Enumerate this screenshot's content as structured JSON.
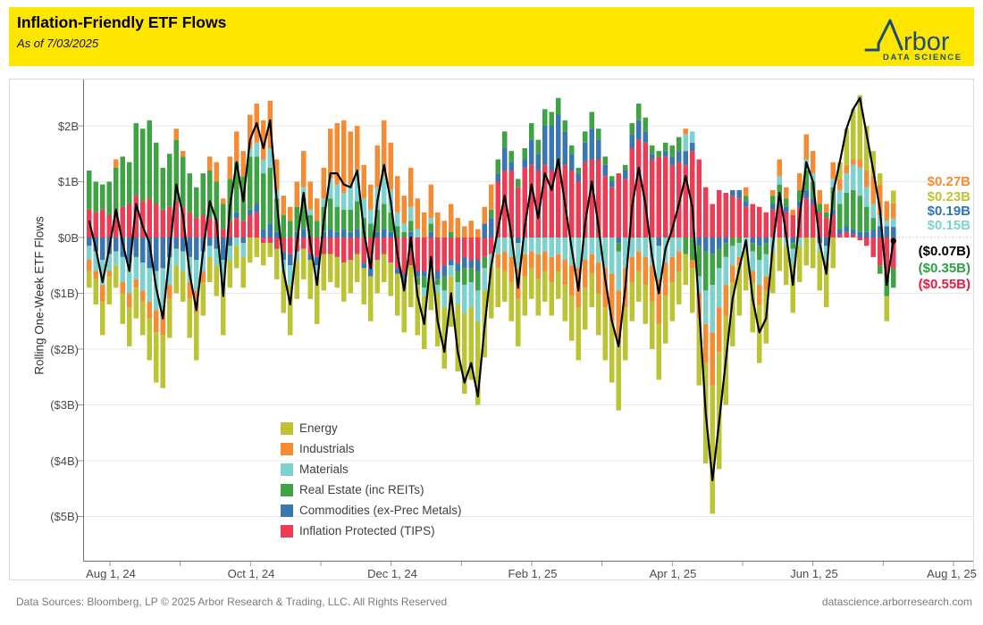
{
  "header": {
    "title": "Inflation-Friendly ETF Flows",
    "subtitle": "As of 7/03/2025",
    "logo_text": "rbor",
    "logo_tagline": "DATA SCIENCE"
  },
  "footer": {
    "left": "Data Sources: Bloomberg, LP © 2025 Arbor Research & Trading, LLC. All Rights Reserved",
    "right": "datascience.arborresearch.com"
  },
  "colors": {
    "header_bg": "#FFE600",
    "logo_navy": "#1D4E70",
    "line": "#000000",
    "grid": "#E8E8E8",
    "zero_line": "#A8A8A8",
    "axis": "#6F6F6F"
  },
  "legend": {
    "items": [
      {
        "label": "Energy",
        "color": "#BDC433"
      },
      {
        "label": "Industrials",
        "color": "#F58B33"
      },
      {
        "label": "Materials",
        "color": "#7CD2CE"
      },
      {
        "label": "Real Estate (inc REITs)",
        "color": "#3FA344"
      },
      {
        "label": "Commodities (ex-Prec Metals)",
        "color": "#3A76AF"
      },
      {
        "label": "Inflation Protected (TIPS)",
        "color": "#EB3D55"
      }
    ]
  },
  "chart_data": {
    "type": "bar",
    "subtype": "stacked-daily-bars-with-net-total-line",
    "title": "Inflation-Friendly ETF Flows",
    "ylabel": "Rolling One-Week ETF Flows",
    "y_ticks": [
      "$2B",
      "$1B",
      "$0B",
      "($1B)",
      "($2B)",
      "($3B)",
      "($4B)",
      "($5B)"
    ],
    "y_tick_values": [
      2,
      1,
      0,
      -1,
      -2,
      -3,
      -4,
      -5
    ],
    "ylim": [
      -5.4,
      2.85
    ],
    "x_ticks": [
      "Aug 1, 24",
      "Oct 1, 24",
      "Dec 1, 24",
      "Feb 1, 25",
      "Apr 1, 25",
      "Jun 1, 25",
      "Aug 1, 25"
    ],
    "grid": true,
    "legend_position": "inside-bottom-center",
    "units": "billions USD",
    "line": {
      "name": "net-total",
      "color": "#000000",
      "derivation": "sum of stacked series per bar"
    },
    "current_labels": [
      {
        "text": "$0.27B",
        "series": "Industrials",
        "value": 0.27,
        "color": "#F58B33"
      },
      {
        "text": "$0.23B",
        "series": "Energy",
        "value": 0.23,
        "color": "#BDC433"
      },
      {
        "text": "$0.19B",
        "series": "Commodities (ex-Prec Metals)",
        "value": 0.19,
        "color": "#2E74B5"
      },
      {
        "text": "$0.15B",
        "series": "Materials",
        "value": 0.15,
        "color": "#7CD2CE"
      },
      {
        "text": "($0.07B)",
        "series": "Net Total",
        "value": -0.07,
        "color": "#000000"
      },
      {
        "text": "($0.35B)",
        "series": "Real Estate (inc REITs)",
        "value": -0.35,
        "color": "#2EA043"
      },
      {
        "text": "($0.55B)",
        "series": "Inflation Protected (TIPS)",
        "value": -0.55,
        "color": "#EB1A44"
      }
    ],
    "series": [
      {
        "name": "Energy",
        "color": "#BDC433",
        "values": [
          -0.3,
          -0.45,
          -0.6,
          -0.5,
          -0.4,
          -0.55,
          -0.7,
          -0.55,
          -0.6,
          -0.75,
          -0.9,
          -0.95,
          -0.7,
          -0.5,
          -0.55,
          -0.7,
          -0.85,
          -0.6,
          -0.45,
          -0.55,
          -0.85,
          -0.5,
          -0.4,
          -0.55,
          -0.45,
          -0.35,
          -0.4,
          -0.25,
          -0.55,
          -0.75,
          -0.9,
          -0.7,
          -0.55,
          -0.7,
          -0.85,
          -0.65,
          -0.5,
          -0.55,
          -0.7,
          -0.6,
          -0.5,
          -0.65,
          -0.8,
          -0.6,
          -0.5,
          -0.6,
          -0.75,
          -0.9,
          -0.75,
          -0.9,
          -0.95,
          -0.8,
          -0.95,
          -1.1,
          -0.9,
          -1.2,
          -1.45,
          -1.3,
          -1.5,
          -1.2,
          -0.9,
          -0.7,
          -0.55,
          -0.7,
          -0.85,
          -0.7,
          -0.55,
          -0.65,
          -0.55,
          -0.6,
          -0.5,
          -0.65,
          -0.8,
          -0.95,
          -0.75,
          -0.6,
          -0.75,
          -0.95,
          -1.1,
          -1.2,
          -0.95,
          -0.7,
          -0.55,
          -0.7,
          -0.85,
          -1.0,
          -0.85,
          -0.7,
          -0.6,
          -0.55,
          -0.8,
          -1.2,
          -1.8,
          -2.3,
          -2.1,
          -1.6,
          -1.15,
          -0.9,
          -0.75,
          -0.9,
          -1.05,
          -0.95,
          -0.75,
          -0.6,
          -0.7,
          -0.85,
          -0.65,
          -0.5,
          -0.55,
          -0.7,
          -0.85,
          -0.55,
          0.3,
          0.65,
          0.9,
          1.15,
          0.8,
          0.45,
          0.2,
          -0.45,
          0.23
        ]
      },
      {
        "name": "Industrials",
        "color": "#F58B33",
        "values": [
          -0.2,
          -0.15,
          -0.3,
          -0.1,
          0.15,
          -0.2,
          -0.25,
          -0.15,
          -0.2,
          -0.3,
          -0.4,
          -0.45,
          -0.25,
          0.2,
          0.1,
          -0.3,
          -0.4,
          -0.2,
          0.25,
          0.35,
          0.1,
          0.4,
          0.55,
          0.45,
          0.6,
          0.7,
          0.7,
          0.85,
          0.55,
          0.35,
          0.25,
          0.45,
          0.65,
          0.5,
          0.4,
          0.55,
          0.9,
          1.1,
          1.3,
          0.95,
          0.8,
          0.6,
          0.45,
          0.75,
          1.0,
          0.85,
          0.65,
          0.5,
          0.7,
          0.55,
          0.45,
          0.6,
          0.45,
          0.3,
          0.5,
          0.35,
          0.2,
          0.3,
          0.15,
          0.3,
          0.45,
          -0.25,
          -0.35,
          -0.45,
          -0.55,
          -0.4,
          -0.3,
          -0.45,
          -0.35,
          -0.45,
          -0.3,
          -0.45,
          -0.55,
          -0.7,
          -0.5,
          -0.35,
          -0.55,
          -0.7,
          -0.85,
          -0.95,
          -0.7,
          -0.45,
          -0.35,
          -0.5,
          -0.65,
          -0.8,
          -0.6,
          -0.45,
          -0.35,
          0.1,
          -0.15,
          -0.45,
          -0.7,
          -0.95,
          -0.8,
          -0.55,
          -0.3,
          -0.15,
          0.15,
          -0.2,
          -0.35,
          -0.25,
          0.1,
          0.3,
          0.2,
          0.1,
          0.3,
          0.45,
          0.4,
          0.25,
          0.15,
          0.3,
          0.2,
          0.15,
          0.1,
          0.15,
          0.3,
          0.5,
          0.55,
          0.35,
          0.27
        ]
      },
      {
        "name": "Materials",
        "color": "#7CD2CE",
        "values": [
          -0.25,
          -0.35,
          -0.45,
          -0.3,
          -0.25,
          -0.45,
          -0.55,
          -0.4,
          -0.5,
          -0.6,
          -0.7,
          -0.75,
          -0.5,
          -0.3,
          -0.35,
          -0.45,
          -0.55,
          -0.35,
          -0.2,
          -0.3,
          -0.5,
          -0.25,
          -0.15,
          -0.25,
          0.15,
          0.25,
          0.25,
          0.35,
          0.15,
          -0.2,
          -0.35,
          -0.15,
          0.2,
          0.1,
          -0.2,
          0.15,
          0.35,
          0.4,
          0.3,
          0.45,
          0.55,
          0.35,
          0.25,
          0.4,
          0.5,
          0.4,
          0.25,
          0.15,
          0.25,
          0.15,
          -0.15,
          0.1,
          -0.15,
          -0.3,
          -0.2,
          -0.4,
          -0.5,
          -0.45,
          -0.55,
          -0.4,
          -0.25,
          -0.3,
          -0.25,
          -0.35,
          -0.45,
          -0.3,
          -0.25,
          -0.3,
          -0.25,
          -0.35,
          -0.3,
          -0.4,
          -0.5,
          -0.55,
          -0.4,
          -0.3,
          -0.45,
          -0.55,
          -0.65,
          -0.7,
          -0.55,
          -0.35,
          -0.25,
          -0.35,
          -0.5,
          -0.6,
          -0.45,
          -0.35,
          -0.25,
          0.3,
          0.2,
          -0.3,
          -0.6,
          -0.85,
          -0.7,
          -0.5,
          -0.35,
          -0.25,
          -0.2,
          -0.35,
          -0.45,
          -0.4,
          -0.25,
          0.15,
          -0.15,
          -0.3,
          -0.15,
          0.2,
          0.15,
          -0.15,
          -0.25,
          0.15,
          0.25,
          0.35,
          0.45,
          0.5,
          0.35,
          0.25,
          0.2,
          0.1,
          0.15
        ]
      },
      {
        "name": "Real Estate (inc REITs)",
        "color": "#3FA344",
        "values": [
          0.7,
          0.55,
          0.45,
          0.6,
          0.8,
          0.9,
          0.75,
          1.3,
          1.3,
          1.4,
          1.1,
          0.75,
          0.95,
          1.1,
          0.9,
          0.7,
          0.55,
          0.75,
          0.85,
          0.7,
          0.45,
          0.75,
          0.9,
          0.8,
          0.95,
          0.85,
          1.0,
          1.0,
          0.6,
          0.4,
          0.3,
          0.45,
          0.55,
          0.4,
          0.3,
          0.45,
          0.55,
          0.45,
          0.35,
          0.4,
          0.5,
          0.35,
          0.25,
          0.4,
          0.45,
          0.35,
          0.2,
          0.1,
          0.2,
          -0.15,
          -0.2,
          0.15,
          -0.1,
          -0.25,
          0.1,
          -0.2,
          -0.3,
          -0.25,
          -0.35,
          -0.2,
          0.15,
          0.25,
          0.3,
          0.2,
          0.15,
          0.2,
          0.3,
          0.25,
          0.3,
          0.25,
          0.3,
          0.2,
          0.15,
          0.1,
          0.2,
          0.3,
          0.2,
          0.15,
          0.1,
          -0.15,
          0.1,
          0.2,
          0.3,
          0.25,
          0.15,
          0.1,
          0.15,
          0.2,
          0.25,
          -0.3,
          -0.4,
          -0.55,
          -0.7,
          -0.55,
          -0.35,
          -0.25,
          -0.15,
          -0.1,
          0.1,
          -0.15,
          -0.25,
          -0.2,
          0.15,
          0.25,
          0.15,
          -0.1,
          0.2,
          0.35,
          0.3,
          0.15,
          0.1,
          0.4,
          0.45,
          0.6,
          0.7,
          0.65,
          0.45,
          0.2,
          -0.15,
          -0.35,
          -0.35
        ]
      },
      {
        "name": "Commodities (ex-Prec Metals)",
        "color": "#3A76AF",
        "values": [
          -0.15,
          -0.25,
          -0.4,
          -0.3,
          -0.25,
          -0.35,
          -0.45,
          -0.35,
          -0.45,
          -0.55,
          -0.6,
          -0.55,
          -0.35,
          -0.2,
          -0.25,
          -0.35,
          -0.4,
          -0.25,
          -0.15,
          -0.2,
          -0.4,
          -0.15,
          0.1,
          -0.1,
          0.1,
          0.15,
          0.15,
          0.25,
          0.1,
          -0.15,
          -0.2,
          0.1,
          0.15,
          -0.1,
          -0.15,
          0.1,
          0.15,
          0.1,
          0.15,
          0.1,
          0.15,
          -0.1,
          -0.15,
          0.1,
          0.15,
          0.1,
          -0.1,
          -0.15,
          0.1,
          -0.1,
          -0.1,
          0.1,
          -0.15,
          -0.2,
          -0.1,
          -0.15,
          -0.2,
          -0.15,
          -0.2,
          0.25,
          0.35,
          0.15,
          0.4,
          0.15,
          -0.1,
          0.15,
          0.45,
          0.3,
          0.7,
          0.8,
          0.95,
          0.6,
          0.3,
          0.15,
          0.35,
          0.55,
          0.35,
          0.2,
          0.1,
          -0.1,
          0.15,
          0.25,
          0.35,
          0.2,
          0.1,
          -0.15,
          0.1,
          0.15,
          0.2,
          0.25,
          0.15,
          -0.15,
          -0.25,
          -0.3,
          -0.2,
          -0.1,
          0.1,
          0.15,
          0.1,
          -0.1,
          -0.15,
          -0.1,
          0.1,
          0.15,
          0.1,
          -0.1,
          0.1,
          0.15,
          0.1,
          -0.1,
          -0.15,
          0.1,
          0.1,
          0.1,
          0.1,
          0.1,
          0.1,
          0.15,
          0.2,
          0.2,
          0.19
        ]
      },
      {
        "name": "Inflation Protected (TIPS)",
        "color": "#EB3D55",
        "values": [
          0.5,
          0.45,
          0.5,
          0.4,
          0.45,
          0.55,
          0.6,
          0.75,
          0.65,
          0.7,
          0.6,
          0.5,
          0.55,
          0.65,
          0.55,
          0.45,
          0.35,
          0.4,
          0.35,
          0.3,
          0.15,
          0.3,
          0.35,
          0.3,
          0.4,
          0.45,
          -0.1,
          -0.1,
          -0.2,
          -0.25,
          -0.3,
          -0.25,
          -0.2,
          -0.3,
          -0.35,
          -0.3,
          -0.3,
          -0.35,
          -0.45,
          -0.4,
          -0.3,
          -0.45,
          -0.55,
          -0.4,
          -0.3,
          -0.45,
          -0.55,
          -0.65,
          -0.5,
          -0.6,
          -0.6,
          -0.5,
          -0.6,
          -0.5,
          -0.4,
          -0.45,
          -0.35,
          -0.4,
          -0.4,
          -0.35,
          -0.3,
          1.0,
          1.2,
          1.2,
          0.9,
          1.25,
          1.3,
          1.2,
          1.3,
          1.2,
          1.25,
          1.3,
          1.2,
          1.0,
          1.35,
          1.4,
          1.4,
          1.1,
          0.9,
          1.15,
          1.05,
          1.6,
          1.75,
          1.7,
          1.4,
          1.45,
          1.45,
          1.3,
          1.35,
          1.3,
          1.55,
          1.4,
          0.9,
          0.6,
          0.85,
          0.8,
          0.75,
          0.7,
          0.55,
          0.6,
          0.55,
          0.45,
          0.5,
          0.55,
          0.45,
          0.4,
          0.55,
          0.7,
          0.6,
          0.45,
          0.35,
          0.4,
          0.05,
          0.1,
          0.05,
          -0.05,
          -0.15,
          -0.35,
          -0.5,
          -0.7,
          -0.55
        ]
      }
    ]
  }
}
